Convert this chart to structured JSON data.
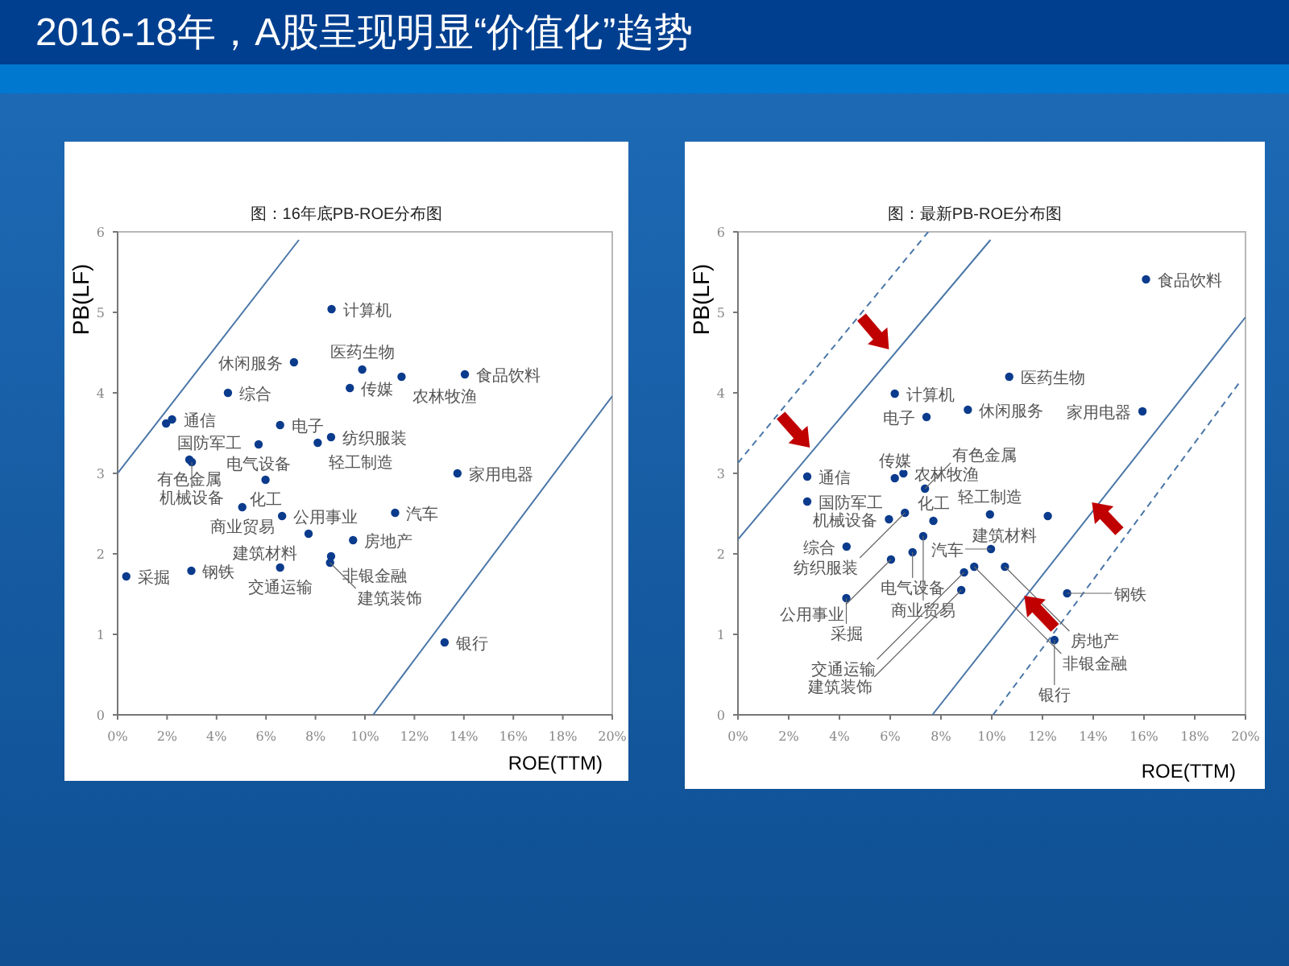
{
  "chart_data": [
    {
      "type": "scatter",
      "title": "图：16年底PB-ROE分布图",
      "xlabel": "ROE(TTM)",
      "ylabel": "PB(LF)",
      "xlim": [
        0,
        20
      ],
      "ylim": [
        0,
        6
      ],
      "xticks": [
        {
          "value": 0,
          "label": "0%"
        },
        {
          "value": 2,
          "label": "2%"
        },
        {
          "value": 4,
          "label": "4%"
        },
        {
          "value": 6,
          "label": "6%"
        },
        {
          "value": 8,
          "label": "8%"
        },
        {
          "value": 10,
          "label": "10%"
        },
        {
          "value": 12,
          "label": "12%"
        },
        {
          "value": 14,
          "label": "14%"
        },
        {
          "value": 16,
          "label": "16%"
        },
        {
          "value": 18,
          "label": "18%"
        },
        {
          "value": 20,
          "label": "20%"
        }
      ],
      "yticks": [
        0,
        1,
        2,
        3,
        4,
        5,
        6
      ],
      "grid": false,
      "series": [
        {
          "type": "scatter",
          "marker": "circle",
          "color": "#0b3b8c",
          "x": [
            8.65,
            7.13,
            9.89,
            14.04,
            9.39,
            11.48,
            4.46,
            1.96,
            2.2,
            6.57,
            5.7,
            8.09,
            8.63,
            2.9,
            3.0,
            13.74,
            5.98,
            5.04,
            6.65,
            7.72,
            11.22,
            9.52,
            0.35,
            2.98,
            6.57,
            8.63,
            8.59,
            13.22
          ],
          "values": [
            5.04,
            4.38,
            4.29,
            4.23,
            4.06,
            4.2,
            4.0,
            3.62,
            3.67,
            3.6,
            3.36,
            3.38,
            3.45,
            3.17,
            3.14,
            3.0,
            2.92,
            2.58,
            2.47,
            2.25,
            2.51,
            2.17,
            1.72,
            1.79,
            1.83,
            1.97,
            1.89,
            0.9
          ]
        },
        {
          "type": "line",
          "color": "#4a77a8",
          "line_style": "solid",
          "x": [
            0,
            7.33
          ],
          "values": [
            3.0,
            5.9
          ]
        },
        {
          "type": "line",
          "color": "#4a77a8",
          "line_style": "solid",
          "x": [
            10.33,
            20
          ],
          "values": [
            0,
            3.96
          ]
        }
      ],
      "annotations": [
        "2016-18年，A股呈现明显“价值化”趋势",
        {
          "text": "计算机",
          "x": 8.65,
          "y": 5.04
        },
        {
          "text": "休闲服务",
          "x": 7.13,
          "y": 4.38
        },
        {
          "text": "医药生物",
          "x": 9.89,
          "y": 4.29
        },
        {
          "text": "食品饮料",
          "x": 14.04,
          "y": 4.23
        },
        {
          "text": "传媒",
          "x": 9.39,
          "y": 4.06
        },
        {
          "text": "农林牧渔",
          "x": 11.48,
          "y": 4.2
        },
        {
          "text": "综合",
          "x": 4.46,
          "y": 4.0
        },
        {
          "text": "国防军工",
          "x": 1.96,
          "y": 3.62
        },
        {
          "text": "通信",
          "x": 2.2,
          "y": 3.67
        },
        {
          "text": "电子",
          "x": 6.57,
          "y": 3.6
        },
        {
          "text": "电气设备",
          "x": 5.7,
          "y": 3.36
        },
        {
          "text": "轻工制造",
          "x": 8.09,
          "y": 3.38
        },
        {
          "text": "纺织服装",
          "x": 8.63,
          "y": 3.45
        },
        {
          "text": "有色金属",
          "x": 2.9,
          "y": 3.17
        },
        {
          "text": "机械设备",
          "x": 3.0,
          "y": 3.14
        },
        {
          "text": "家用电器",
          "x": 13.74,
          "y": 3.0
        },
        {
          "text": "化工",
          "x": 5.98,
          "y": 2.92
        },
        {
          "text": "商业贸易",
          "x": 5.04,
          "y": 2.58
        },
        {
          "text": "公用事业",
          "x": 6.65,
          "y": 2.47
        },
        {
          "text": "建筑材料",
          "x": 7.72,
          "y": 2.25
        },
        {
          "text": "汽车",
          "x": 11.22,
          "y": 2.51
        },
        {
          "text": "房地产",
          "x": 9.52,
          "y": 2.17
        },
        {
          "text": "采掘",
          "x": 0.35,
          "y": 1.72
        },
        {
          "text": "钢铁",
          "x": 2.98,
          "y": 1.79
        },
        {
          "text": "交通运输",
          "x": 6.57,
          "y": 1.83
        },
        {
          "text": "非银金融",
          "x": 8.63,
          "y": 1.97
        },
        {
          "text": "建筑装饰",
          "x": 8.59,
          "y": 1.89
        },
        {
          "text": "银行",
          "x": 13.22,
          "y": 0.9
        }
      ]
    },
    {
      "type": "scatter",
      "title": "图：最新PB-ROE分布图",
      "xlabel": "ROE(TTM)",
      "ylabel": "PB(LF)",
      "xlim": [
        0,
        20
      ],
      "ylim": [
        0,
        6
      ],
      "xticks": [
        {
          "value": 0,
          "label": "0%"
        },
        {
          "value": 2,
          "label": "2%"
        },
        {
          "value": 4,
          "label": "4%"
        },
        {
          "value": 6,
          "label": "6%"
        },
        {
          "value": 8,
          "label": "8%"
        },
        {
          "value": 10,
          "label": "10%"
        },
        {
          "value": 12,
          "label": "12%"
        },
        {
          "value": 14,
          "label": "14%"
        },
        {
          "value": 16,
          "label": "16%"
        },
        {
          "value": 18,
          "label": "18%"
        },
        {
          "value": 20,
          "label": "20%"
        }
      ],
      "yticks": [
        0,
        1,
        2,
        3,
        4,
        5,
        6
      ],
      "grid": false,
      "series": [
        {
          "type": "scatter",
          "marker": "circle",
          "color": "#0b3b8c",
          "x": [
            16.08,
            10.69,
            6.18,
            9.06,
            7.43,
            15.94,
            2.73,
            6.52,
            6.18,
            7.37,
            2.73,
            5.95,
            6.58,
            9.93,
            12.21,
            6.88,
            7.3,
            7.7,
            9.97,
            4.28,
            6.03,
            4.27,
            9.31,
            8.91,
            10.52,
            12.97,
            12.47,
            8.8
          ],
          "values": [
            5.41,
            4.2,
            3.99,
            3.79,
            3.7,
            3.77,
            2.96,
            3.0,
            2.94,
            2.81,
            2.65,
            2.43,
            2.51,
            2.49,
            2.47,
            2.02,
            2.22,
            2.41,
            2.06,
            2.09,
            1.93,
            1.45,
            1.84,
            1.77,
            1.84,
            1.51,
            0.93,
            1.55
          ]
        },
        {
          "type": "line",
          "color": "#4a77a8",
          "line_style": "solid",
          "x": [
            0,
            9.95
          ],
          "values": [
            2.18,
            5.9
          ]
        },
        {
          "type": "line",
          "color": "#4a77a8",
          "line_style": "dashed",
          "x": [
            0,
            7.5
          ],
          "values": [
            3.13,
            6.0
          ]
        },
        {
          "type": "line",
          "color": "#4a77a8",
          "line_style": "solid",
          "x": [
            7.66,
            20
          ],
          "values": [
            0,
            4.94
          ]
        },
        {
          "type": "line",
          "color": "#4a77a8",
          "line_style": "dashed",
          "x": [
            10.05,
            19.79
          ],
          "values": [
            0,
            4.14
          ]
        }
      ],
      "annotations": [
        {
          "text": "食品饮料",
          "x": 16.08,
          "y": 5.41
        },
        {
          "text": "医药生物",
          "x": 10.69,
          "y": 4.2
        },
        {
          "text": "计算机",
          "x": 6.18,
          "y": 3.99
        },
        {
          "text": "休闲服务",
          "x": 9.06,
          "y": 3.79
        },
        {
          "text": "电子",
          "x": 7.43,
          "y": 3.7
        },
        {
          "text": "家用电器",
          "x": 15.94,
          "y": 3.77
        },
        {
          "text": "通信",
          "x": 2.73,
          "y": 2.96
        },
        {
          "text": "农林牧渔",
          "x": 6.52,
          "y": 3.0
        },
        {
          "text": "传媒",
          "x": 6.18,
          "y": 2.94
        },
        {
          "text": "有色金属",
          "x": 7.37,
          "y": 2.81
        },
        {
          "text": "国防军工",
          "x": 2.73,
          "y": 2.65
        },
        {
          "text": "机械设备",
          "x": 5.95,
          "y": 2.43
        },
        {
          "text": "纺织服装",
          "x": 6.58,
          "y": 2.51
        },
        {
          "text": "轻工制造",
          "x": 9.93,
          "y": 2.49
        },
        {
          "text": "建筑材料",
          "x": 12.21,
          "y": 2.47
        },
        {
          "text": "电气设备",
          "x": 6.88,
          "y": 2.02
        },
        {
          "text": "商业贸易",
          "x": 7.3,
          "y": 2.22
        },
        {
          "text": "化工",
          "x": 7.7,
          "y": 2.41
        },
        {
          "text": "汽车",
          "x": 9.97,
          "y": 2.06
        },
        {
          "text": "综合",
          "x": 4.28,
          "y": 2.09
        },
        {
          "text": "公用事业",
          "x": 6.03,
          "y": 1.93
        },
        {
          "text": "采掘",
          "x": 4.27,
          "y": 1.45
        },
        {
          "text": "非银金融",
          "x": 9.31,
          "y": 1.84
        },
        {
          "text": "交通运输",
          "x": 8.91,
          "y": 1.77
        },
        {
          "text": "房地产",
          "x": 10.52,
          "y": 1.84
        },
        {
          "text": "钢铁",
          "x": 12.97,
          "y": 1.51
        },
        {
          "text": "银行",
          "x": 12.47,
          "y": 0.93
        },
        {
          "text": "建筑装饰",
          "x": 8.8,
          "y": 1.55
        }
      ]
    }
  ]
}
